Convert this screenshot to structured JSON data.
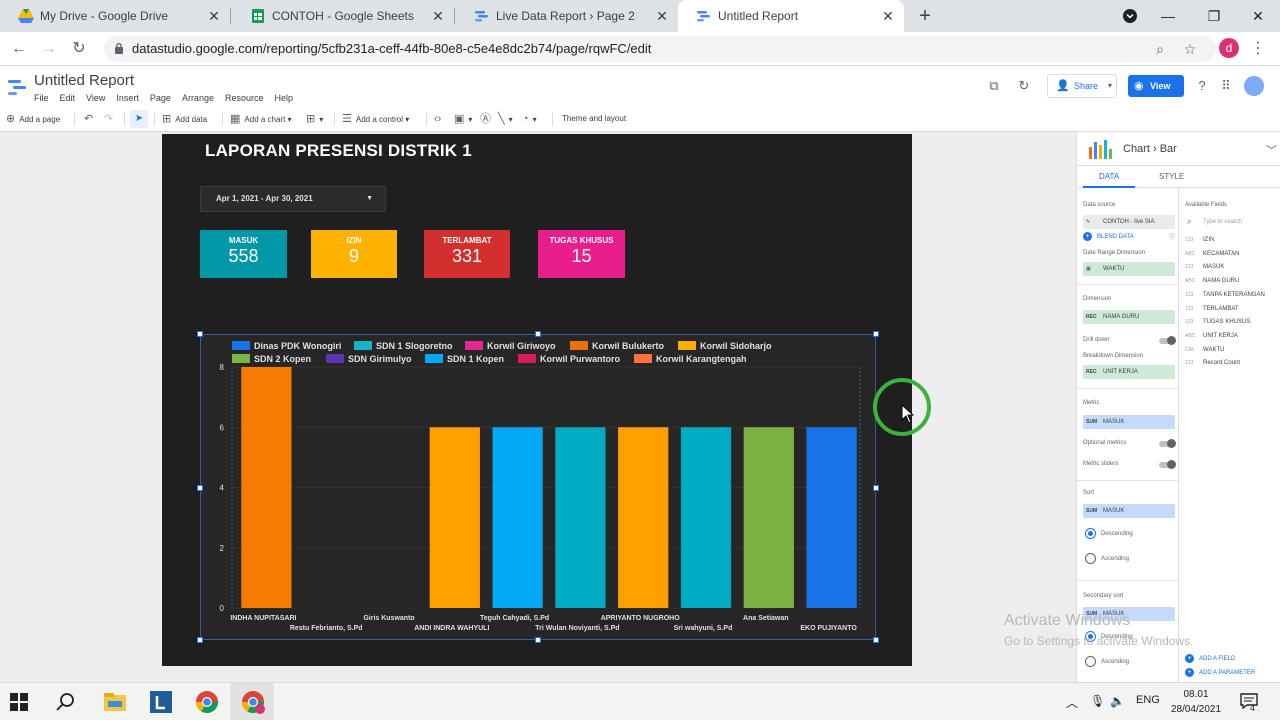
{
  "browser": {
    "tabs": [
      {
        "title": "My Drive - Google Drive",
        "icon": "google-drive-icon"
      },
      {
        "title": "CONTOH - Google Sheets",
        "icon": "google-sheets-icon"
      },
      {
        "title": "Live Data Report › Page 2",
        "icon": "data-studio-icon"
      },
      {
        "title": "Untitled Report",
        "icon": "data-studio-icon",
        "active": true
      }
    ],
    "url": "datastudio.google.com/reporting/5cfb231a-ceff-44fb-80e8-c5e4e8dc2b74/page/rqwFC/edit",
    "profile_initial": "d"
  },
  "app": {
    "title": "Untitled Report",
    "menu": [
      "File",
      "Edit",
      "View",
      "Insert",
      "Page",
      "Arrange",
      "Resource",
      "Help"
    ],
    "share_label": "Share",
    "view_label": "View"
  },
  "toolbar": {
    "add_page": "Add a page",
    "add_data": "Add data",
    "add_chart": "Add a chart",
    "add_control": "Add a control",
    "theme_layout": "Theme and layout"
  },
  "report": {
    "title": "LAPORAN PRESENSI DISTRIK 1",
    "date_range": "Apr 1, 2021 - Apr 30, 2021",
    "scorecards": [
      {
        "label": "MASUK",
        "value": "558",
        "color": "#0097a7"
      },
      {
        "label": "IZIN",
        "value": "9",
        "color": "#ffb300"
      },
      {
        "label": "TERLAMBAT",
        "value": "331",
        "color": "#d32f2f"
      },
      {
        "label": "TUGAS KHUSUS",
        "value": "15",
        "color": "#e91e8c"
      }
    ]
  },
  "chart_data": {
    "type": "bar",
    "legend": [
      {
        "name": "Dinas PDK Wonogiri",
        "color": "#1a73e8"
      },
      {
        "name": "SDN 1 Slogoretno",
        "color": "#12b5cb"
      },
      {
        "name": "Korwil Giriwoyo",
        "color": "#e52592"
      },
      {
        "name": "Korwil Bulukerto",
        "color": "#e8710a"
      },
      {
        "name": "Korwil Sidoharjo",
        "color": "#f9ab00"
      },
      {
        "name": "SDN 2 Kopen",
        "color": "#7cb342"
      },
      {
        "name": "SDN Girimulyo",
        "color": "#5e35b1"
      },
      {
        "name": "SDN 1 Kopen",
        "color": "#03a9f4"
      },
      {
        "name": "Korwil Purwantoro",
        "color": "#d81b60"
      },
      {
        "name": "Korwil Karangtengah",
        "color": "#ff7043"
      }
    ],
    "categories": [
      "INDHA NUPITASARI",
      "Restu Febrianto, S.Pd",
      "Giris Kuswanto",
      "ANDI INDRA WAHYULI",
      "Teguh Cahyadi, S.Pd",
      "Tri Wulan Noviyanti, S.Pd",
      "APRIYANTO NUGROHO",
      "Sri wahyuni, S.Pd",
      "Ana Setiawan",
      "EKO PUJIYANTO"
    ],
    "values": [
      8,
      0,
      0,
      6,
      6,
      6,
      6,
      6,
      6,
      6
    ],
    "bar_colors": [
      "#f57c00",
      "#f57c00",
      "#f57c00",
      "#ffa000",
      "#03a9f4",
      "#00acc1",
      "#ffa000",
      "#00acc1",
      "#7cb342",
      "#1a73e8"
    ],
    "ylim": [
      0,
      8
    ],
    "yticks": [
      "0",
      "2",
      "4",
      "6",
      "8"
    ],
    "grid": true,
    "legend_position": "top"
  },
  "panel": {
    "breadcrumb_chart": "Chart",
    "breadcrumb_sep": "›",
    "breadcrumb_type": "Bar",
    "tab_data": "DATA",
    "tab_style": "STYLE",
    "data_source_label": "Data source",
    "data_source": "CONTOH - live SIA",
    "blend_data": "BLEND DATA",
    "date_range_dim_label": "Date Range Dimension",
    "date_range_dim": "WAKTU",
    "dimension_label": "Dimension",
    "dimension": "NAMA GURU",
    "drill_down": "Drill down",
    "breakdown_label": "Breakdown Dimension",
    "breakdown": "UNIT KERJA",
    "metric_label": "Metric",
    "metric": "MASUK",
    "optional_metrics": "Optional metrics",
    "metric_sliders": "Metric sliders",
    "sort_label": "Sort",
    "sort": "MASUK",
    "descending": "Descending",
    "ascending": "Ascending",
    "secondary_sort_label": "Secondary sort",
    "secondary_sort": "MASUK",
    "available_fields_label": "Available Fields",
    "search_placeholder": "Type to search",
    "fields": [
      {
        "type": "123",
        "name": "IZIN"
      },
      {
        "type": "ABC",
        "name": "KECAMATAN"
      },
      {
        "type": "123",
        "name": "MASUK"
      },
      {
        "type": "ABC",
        "name": "NAMA GURU"
      },
      {
        "type": "123",
        "name": "TANPA KETERANGAN"
      },
      {
        "type": "123",
        "name": "TERLAMBAT"
      },
      {
        "type": "123",
        "name": "TUGAS KHUSUS"
      },
      {
        "type": "ABC",
        "name": "UNIT KERJA"
      },
      {
        "type": "CAL",
        "name": "WAKTU"
      },
      {
        "type": "123",
        "name": "Record Count"
      }
    ],
    "add_field": "ADD A FIELD",
    "add_parameter": "ADD A PARAMETER"
  },
  "watermark": {
    "line1": "Activate Windows",
    "line2": "Go to Settings to activate Windows."
  },
  "taskbar": {
    "language": "ENG",
    "time": "08.01",
    "date": "28/04/2021",
    "notifications": "4"
  }
}
